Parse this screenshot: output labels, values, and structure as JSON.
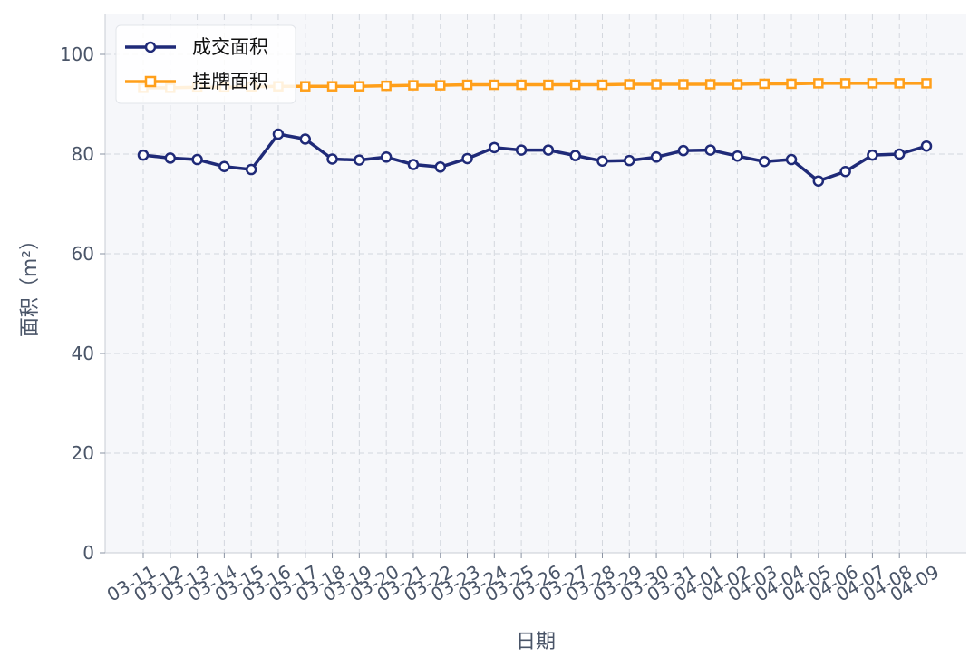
{
  "chart_data": {
    "type": "line",
    "xlabel": "日期",
    "ylabel": "面积（m²）",
    "ylim": [
      0,
      108
    ],
    "yticks": [
      0,
      20,
      40,
      60,
      80,
      100
    ],
    "grid": true,
    "legend_position": "top-left",
    "categories": [
      "03-11",
      "03-12",
      "03-13",
      "03-14",
      "03-15",
      "03-16",
      "03-17",
      "03-18",
      "03-19",
      "03-20",
      "03-21",
      "03-22",
      "03-23",
      "03-24",
      "03-25",
      "03-26",
      "03-27",
      "03-28",
      "03-29",
      "03-30",
      "03-31",
      "04-01",
      "04-02",
      "04-03",
      "04-04",
      "04-05",
      "04-06",
      "04-07",
      "04-08",
      "04-09"
    ],
    "series": [
      {
        "name": "成交面积",
        "color": "#1f2a78",
        "marker": "circle",
        "values": [
          79.8,
          79.2,
          78.9,
          77.5,
          76.9,
          84.0,
          83.0,
          79.0,
          78.8,
          79.4,
          77.9,
          77.4,
          79.1,
          81.3,
          80.8,
          80.8,
          79.7,
          78.6,
          78.7,
          79.4,
          80.7,
          80.8,
          79.6,
          78.5,
          78.9,
          74.6,
          76.5,
          79.8,
          80.0,
          81.6
        ]
      },
      {
        "name": "挂牌面积",
        "color": "#ff9f1a",
        "marker": "square",
        "values": [
          93.3,
          93.3,
          93.4,
          93.4,
          93.5,
          93.6,
          93.6,
          93.6,
          93.6,
          93.7,
          93.8,
          93.8,
          93.9,
          93.9,
          93.9,
          93.9,
          93.9,
          93.9,
          94.0,
          94.0,
          94.0,
          94.0,
          94.0,
          94.1,
          94.1,
          94.2,
          94.2,
          94.2,
          94.2,
          94.2
        ]
      }
    ]
  }
}
